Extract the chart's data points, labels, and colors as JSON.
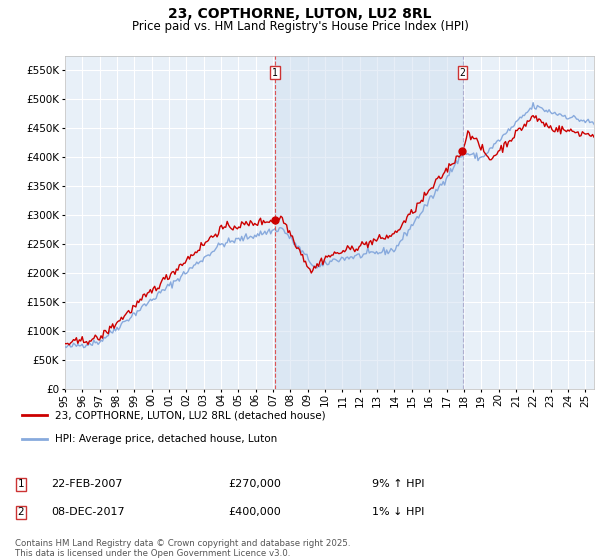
{
  "title": "23, COPTHORNE, LUTON, LU2 8RL",
  "subtitle": "Price paid vs. HM Land Registry's House Price Index (HPI)",
  "ylabel_ticks": [
    "£0",
    "£50K",
    "£100K",
    "£150K",
    "£200K",
    "£250K",
    "£300K",
    "£350K",
    "£400K",
    "£450K",
    "£500K",
    "£550K"
  ],
  "ytick_values": [
    0,
    50000,
    100000,
    150000,
    200000,
    250000,
    300000,
    350000,
    400000,
    450000,
    500000,
    550000
  ],
  "ylim": [
    0,
    575000
  ],
  "xlim_start": 1995.0,
  "xlim_end": 2025.5,
  "marker1_x": 2007.12,
  "marker1_y": 270000,
  "marker2_x": 2017.93,
  "marker2_y": 400000,
  "marker1_label": "1",
  "marker2_label": "2",
  "annotation1_date": "22-FEB-2007",
  "annotation1_price": "£270,000",
  "annotation1_hpi": "9% ↑ HPI",
  "annotation2_date": "08-DEC-2017",
  "annotation2_price": "£400,000",
  "annotation2_hpi": "1% ↓ HPI",
  "line1_color": "#cc0000",
  "line2_color": "#88aadd",
  "vline1_color": "#dd4444",
  "vline2_color": "#aaaacc",
  "shade_color": "#d0dff0",
  "line1_label": "23, COPTHORNE, LUTON, LU2 8RL (detached house)",
  "line2_label": "HPI: Average price, detached house, Luton",
  "bg_color": "#ffffff",
  "plot_bg_color": "#e8f0f8",
  "grid_color": "#ffffff",
  "footer": "Contains HM Land Registry data © Crown copyright and database right 2025.\nThis data is licensed under the Open Government Licence v3.0.",
  "xticks": [
    1995,
    1996,
    1997,
    1998,
    1999,
    2000,
    2001,
    2002,
    2003,
    2004,
    2005,
    2006,
    2007,
    2008,
    2009,
    2010,
    2011,
    2012,
    2013,
    2014,
    2015,
    2016,
    2017,
    2018,
    2019,
    2020,
    2021,
    2022,
    2023,
    2024,
    2025
  ]
}
